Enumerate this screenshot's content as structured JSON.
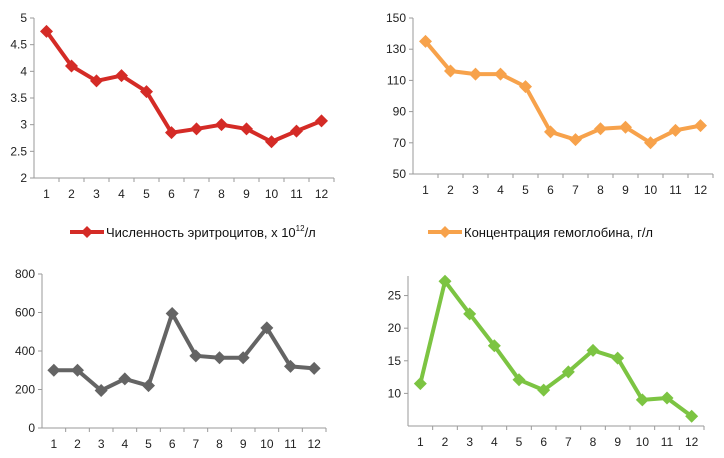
{
  "chart_data": [
    {
      "type": "line",
      "x": [
        1,
        2,
        3,
        4,
        5,
        6,
        7,
        8,
        9,
        10,
        11,
        12
      ],
      "values": [
        4.75,
        4.1,
        3.82,
        3.92,
        3.62,
        2.85,
        2.92,
        3.0,
        2.92,
        2.68,
        2.88,
        3.07
      ],
      "ylim": [
        2,
        5
      ],
      "yticks": [
        "2",
        "2.5",
        "3",
        "3.5",
        "4",
        "4.5",
        "5"
      ],
      "xticks": [
        "1",
        "2",
        "3",
        "4",
        "5",
        "6",
        "7",
        "8",
        "9",
        "10",
        "11",
        "12"
      ],
      "color": "#d42b26",
      "legend": {
        "prefix": "Численность эритроцитов, х 10",
        "sup": "12",
        "suffix": "/л"
      },
      "legend_position": "bottom"
    },
    {
      "type": "line",
      "x": [
        1,
        2,
        3,
        4,
        5,
        6,
        7,
        8,
        9,
        10,
        11,
        12
      ],
      "values": [
        135,
        116,
        114,
        114,
        106,
        77,
        72,
        79,
        80,
        70,
        78,
        81
      ],
      "ylim": [
        50,
        150
      ],
      "yticks": [
        "50",
        "70",
        "90",
        "110",
        "130",
        "150"
      ],
      "xticks": [
        "1",
        "2",
        "3",
        "4",
        "5",
        "6",
        "7",
        "8",
        "9",
        "10",
        "11",
        "12"
      ],
      "color": "#f7a24b",
      "legend": {
        "prefix": "Концентрация гемоглобина, г/л",
        "sup": "",
        "suffix": ""
      },
      "legend_position": "bottom"
    },
    {
      "type": "line",
      "x": [
        1,
        2,
        3,
        4,
        5,
        6,
        7,
        8,
        9,
        10,
        11,
        12
      ],
      "values": [
        300,
        300,
        195,
        255,
        220,
        595,
        375,
        365,
        365,
        520,
        320,
        310
      ],
      "ylim": [
        0,
        800
      ],
      "yticks": [
        "0",
        "200",
        "400",
        "600",
        "800"
      ],
      "xticks": [
        "1",
        "2",
        "3",
        "4",
        "5",
        "6",
        "7",
        "8",
        "9",
        "10",
        "11",
        "12"
      ],
      "color": "#646464"
    },
    {
      "type": "line",
      "x": [
        1,
        2,
        3,
        4,
        5,
        6,
        7,
        8,
        9,
        10,
        11,
        12
      ],
      "values": [
        11.5,
        27.2,
        22.2,
        17.3,
        12.1,
        10.5,
        13.3,
        16.6,
        15.4,
        9.0,
        9.3,
        6.5
      ],
      "ylim": [
        5,
        28
      ],
      "yticks": [
        "10",
        "15",
        "20",
        "25"
      ],
      "ytick_values": [
        10,
        15,
        20,
        25
      ],
      "xticks": [
        "1",
        "2",
        "3",
        "4",
        "5",
        "6",
        "7",
        "8",
        "9",
        "10",
        "11",
        "12"
      ],
      "color": "#7cc442"
    }
  ]
}
